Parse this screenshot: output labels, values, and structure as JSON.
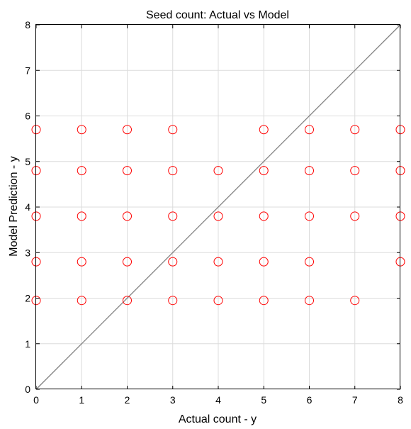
{
  "chart_data": {
    "type": "scatter",
    "title": "Seed count: Actual vs Model",
    "xlabel": "Actual count - y",
    "ylabel": "Model Prediction - y",
    "xlim": [
      0,
      8
    ],
    "ylim": [
      0,
      8
    ],
    "xticks": [
      "0",
      "1",
      "2",
      "3",
      "4",
      "5",
      "6",
      "7",
      "8"
    ],
    "yticks": [
      "0",
      "1",
      "2",
      "3",
      "4",
      "5",
      "6",
      "7",
      "8"
    ],
    "grid": true,
    "reference_line": {
      "from": [
        0,
        0
      ],
      "to": [
        8,
        8
      ],
      "color": "#808080"
    },
    "marker_color": "#ff0000",
    "series": [
      {
        "points": [
          [
            0,
            5.7
          ],
          [
            1,
            5.7
          ],
          [
            2,
            5.7
          ],
          [
            3,
            5.7
          ],
          [
            5,
            5.7
          ],
          [
            6,
            5.7
          ],
          [
            7,
            5.7
          ],
          [
            8,
            5.7
          ],
          [
            0,
            4.8
          ],
          [
            1,
            4.8
          ],
          [
            2,
            4.8
          ],
          [
            3,
            4.8
          ],
          [
            4,
            4.8
          ],
          [
            5,
            4.8
          ],
          [
            6,
            4.8
          ],
          [
            7,
            4.8
          ],
          [
            8,
            4.8
          ],
          [
            0,
            3.8
          ],
          [
            1,
            3.8
          ],
          [
            2,
            3.8
          ],
          [
            3,
            3.8
          ],
          [
            4,
            3.8
          ],
          [
            5,
            3.8
          ],
          [
            6,
            3.8
          ],
          [
            7,
            3.8
          ],
          [
            8,
            3.8
          ],
          [
            0,
            2.8
          ],
          [
            1,
            2.8
          ],
          [
            2,
            2.8
          ],
          [
            3,
            2.8
          ],
          [
            4,
            2.8
          ],
          [
            5,
            2.8
          ],
          [
            6,
            2.8
          ],
          [
            8,
            2.8
          ],
          [
            0,
            1.95
          ],
          [
            1,
            1.95
          ],
          [
            2,
            1.95
          ],
          [
            3,
            1.95
          ],
          [
            4,
            1.95
          ],
          [
            5,
            1.95
          ],
          [
            6,
            1.95
          ],
          [
            7,
            1.95
          ]
        ]
      }
    ]
  }
}
